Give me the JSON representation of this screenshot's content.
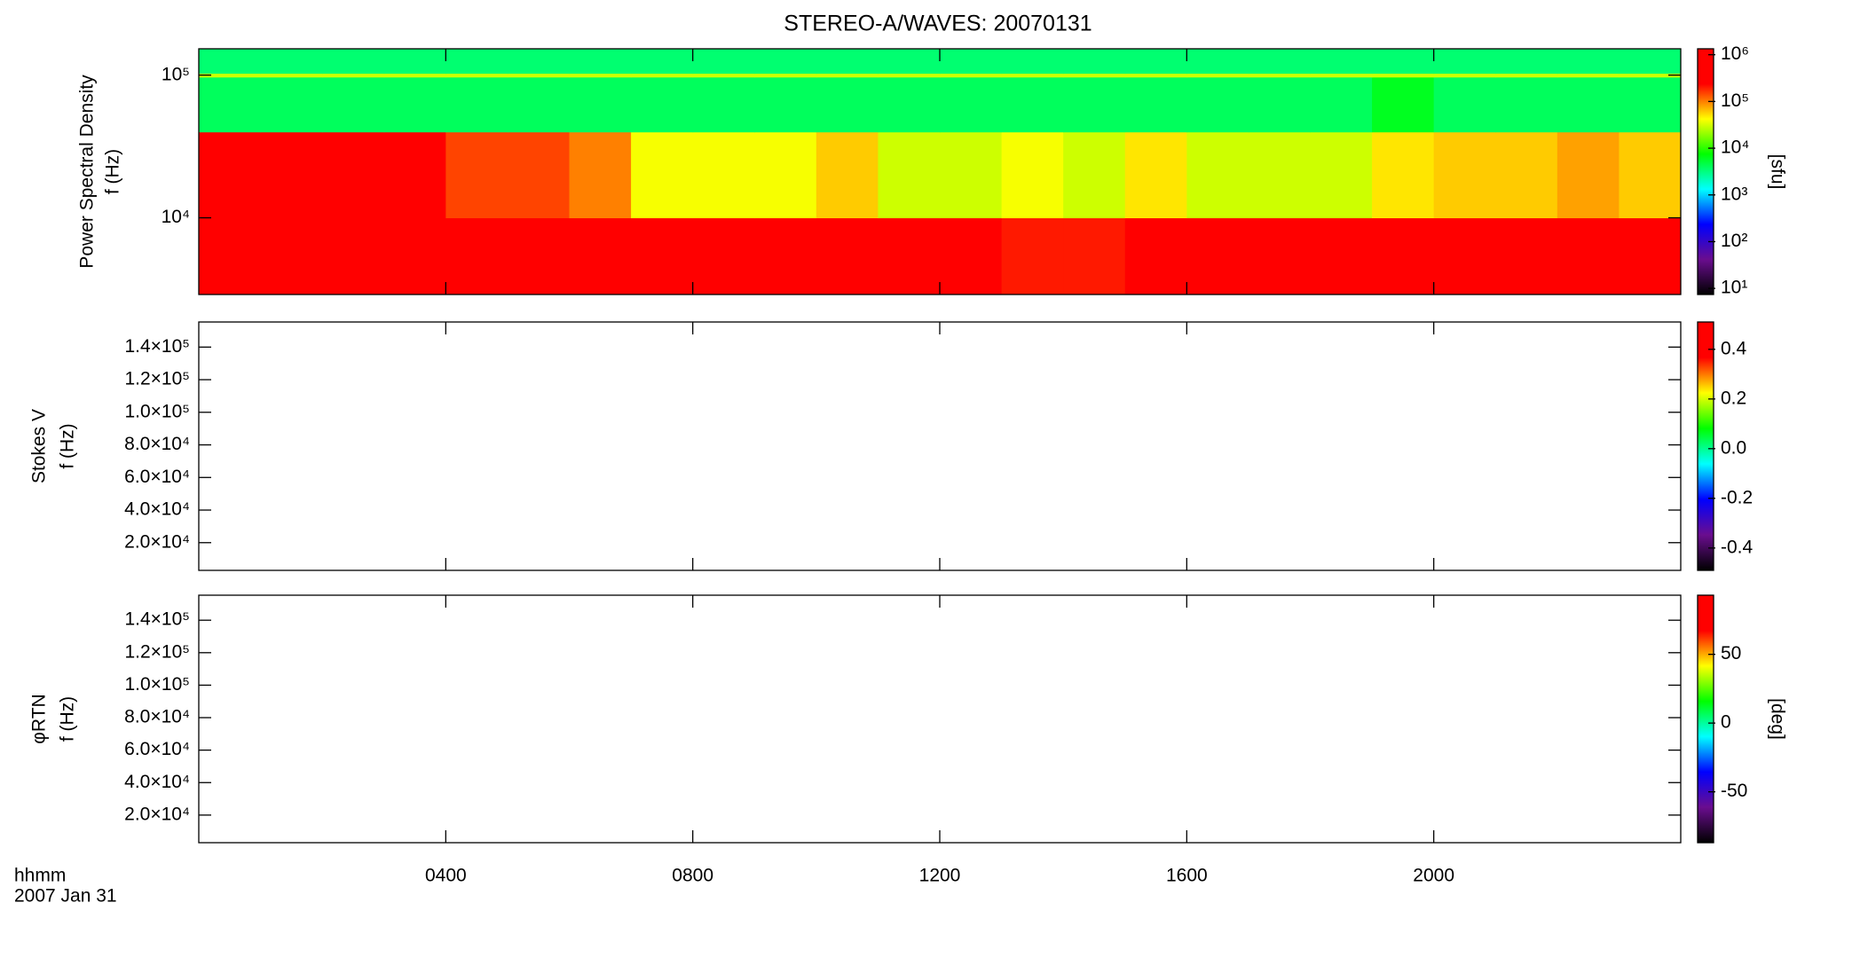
{
  "chart_data": [
    {
      "type": "heatmap",
      "title": "STEREO-A/WAVES: 20070131",
      "ylabel": [
        "Power Spectral Density",
        "f (Hz)"
      ],
      "ylog": true,
      "ylim": [
        2900,
        153000
      ],
      "yticks": [
        {
          "value": 10000,
          "label": "10⁴"
        },
        {
          "value": 100000,
          "label": "10⁵"
        }
      ],
      "x": [
        0,
        1,
        2,
        3,
        4,
        5,
        6,
        7,
        8,
        9,
        10,
        11,
        12,
        13,
        14,
        15,
        16,
        17,
        18,
        19,
        20,
        21,
        22,
        23,
        24
      ],
      "y": [
        2900,
        10000,
        40000,
        97000,
        103000,
        153000
      ],
      "z": [
        [
          1000000,
          1000000,
          1000000,
          1000000,
          1000000,
          1000000,
          300000,
          1000000,
          300000,
          1000000,
          1000000,
          1000000,
          500000,
          200000,
          200000,
          400000,
          1000000,
          1000000,
          1000000,
          1000000,
          1000000,
          1000000,
          1000000,
          1000000
        ],
        [
          1000000,
          1000000,
          1000000,
          500000,
          150000,
          150000,
          100000,
          40000,
          40000,
          40000,
          60000,
          30000,
          30000,
          40000,
          30000,
          50000,
          30000,
          30000,
          30000,
          50000,
          60000,
          60000,
          80000,
          60000
        ],
        [
          4000,
          4000,
          4000,
          4000,
          4000,
          4000,
          4000,
          4000,
          4000,
          4000,
          4000,
          4000,
          4000,
          4000,
          4000,
          4000,
          4000,
          4000,
          4000,
          6000,
          4000,
          4000,
          4000,
          4000
        ],
        [
          30000,
          30000,
          30000,
          30000,
          30000,
          30000,
          30000,
          30000,
          30000,
          30000,
          30000,
          30000,
          30000,
          30000,
          30000,
          30000,
          30000,
          30000,
          30000,
          30000,
          30000,
          30000,
          30000,
          30000
        ],
        [
          3500,
          3500,
          3500,
          3500,
          3500,
          3500,
          3500,
          3500,
          3500,
          3500,
          3500,
          3500,
          3500,
          3500,
          3500,
          3500,
          3500,
          3500,
          3500,
          3500,
          3500,
          3500,
          3500,
          3500
        ]
      ],
      "colormap": [
        "#000000",
        "#6a0d8f",
        "#0000ff",
        "#00ffff",
        "#00ff00",
        "#ffff00",
        "#ff0000",
        "#ff0000"
      ],
      "colorbar": {
        "log": true,
        "lim": [
          7.4,
          1340000
        ],
        "label": "[sfu]",
        "ticks": [
          {
            "value": 10,
            "label": "10¹"
          },
          {
            "value": 100,
            "label": "10²"
          },
          {
            "value": 1000,
            "label": "10³"
          },
          {
            "value": 10000,
            "label": "10⁴"
          },
          {
            "value": 100000,
            "label": "10⁵"
          },
          {
            "value": 1000000,
            "label": "10⁶"
          }
        ]
      }
    },
    {
      "type": "heatmap",
      "ylabel": [
        "Stokes V",
        "f (Hz)"
      ],
      "ylog": false,
      "ylim": [
        3000,
        155400
      ],
      "yticks": [
        {
          "value": 20000,
          "label": "2.0×10⁴"
        },
        {
          "value": 40000,
          "label": "4.0×10⁴"
        },
        {
          "value": 60000,
          "label": "6.0×10⁴"
        },
        {
          "value": 80000,
          "label": "8.0×10⁴"
        },
        {
          "value": 100000,
          "label": "1.0×10⁵"
        },
        {
          "value": 120000,
          "label": "1.2×10⁵"
        },
        {
          "value": 140000,
          "label": "1.4×10⁵"
        }
      ],
      "colormap": [
        "#000000",
        "#6a0d8f",
        "#0000ff",
        "#00ffff",
        "#00ff00",
        "#ffff00",
        "#ff0000",
        "#ff0000"
      ],
      "colorbar": {
        "log": false,
        "lim": [
          -0.49,
          0.51
        ],
        "ticks": [
          -0.4,
          -0.2,
          {
            "value": 0,
            "label": "0.0"
          },
          0.2,
          0.4
        ]
      }
    },
    {
      "type": "heatmap",
      "ylabel": [
        "φRTN",
        "f (Hz)"
      ],
      "ylog": false,
      "ylim": [
        3000,
        155400
      ],
      "yticks": [
        {
          "value": 20000,
          "label": "2.0×10⁴"
        },
        {
          "value": 40000,
          "label": "4.0×10⁴"
        },
        {
          "value": 60000,
          "label": "6.0×10⁴"
        },
        {
          "value": 80000,
          "label": "8.0×10⁴"
        },
        {
          "value": 100000,
          "label": "1.0×10⁵"
        },
        {
          "value": 120000,
          "label": "1.2×10⁵"
        },
        {
          "value": 140000,
          "label": "1.4×10⁵"
        }
      ],
      "colormap": [
        "#000000",
        "#6a0d8f",
        "#0000ff",
        "#00ffff",
        "#00ff00",
        "#ffff00",
        "#ff0000",
        "#ff0000"
      ],
      "colorbar": {
        "log": false,
        "lim": [
          -87,
          93
        ],
        "label": "[deg]",
        "ticks": [
          -50,
          0,
          50
        ]
      },
      "xlabel": [
        "hhmm",
        "2007 Jan 31"
      ],
      "xlim": [
        0,
        24
      ],
      "xticks": [
        {
          "value": 4,
          "label": "0400"
        },
        {
          "value": 8,
          "label": "0800"
        },
        {
          "value": 12,
          "label": "1200"
        },
        {
          "value": 16,
          "label": "1600"
        },
        {
          "value": 20,
          "label": "2000"
        }
      ]
    }
  ]
}
